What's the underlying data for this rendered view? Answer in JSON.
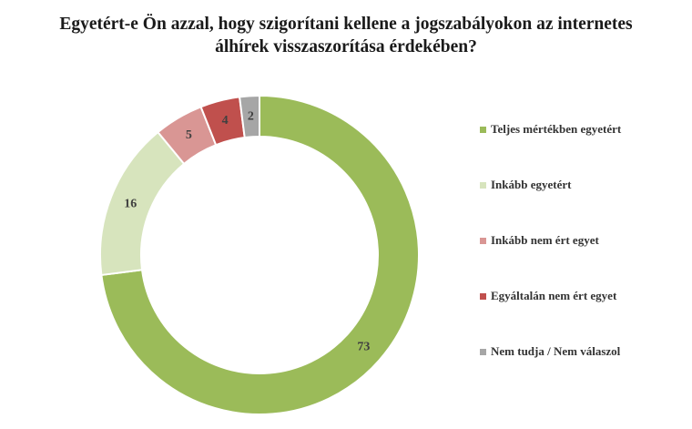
{
  "chart_data": {
    "type": "pie",
    "variant": "doughnut",
    "title_lines": [
      "Egyetért-e Ön azzal, hogy szigorítani kellene a jogszabályokon az internetes",
      "álhírek visszaszorítása érdekében?"
    ],
    "categories": [
      "Teljes mértékben egyetért",
      "Inkább egyetért",
      "Inkább nem ért egyet",
      "Egyáltalán nem ért egyet",
      "Nem tudja / Nem válaszol"
    ],
    "values": [
      73,
      16,
      5,
      4,
      2
    ],
    "colors": [
      "#9bbb59",
      "#d7e4bd",
      "#d99694",
      "#c0504d",
      "#a6a6a6"
    ],
    "legend_position": "right",
    "data_labels": true
  }
}
